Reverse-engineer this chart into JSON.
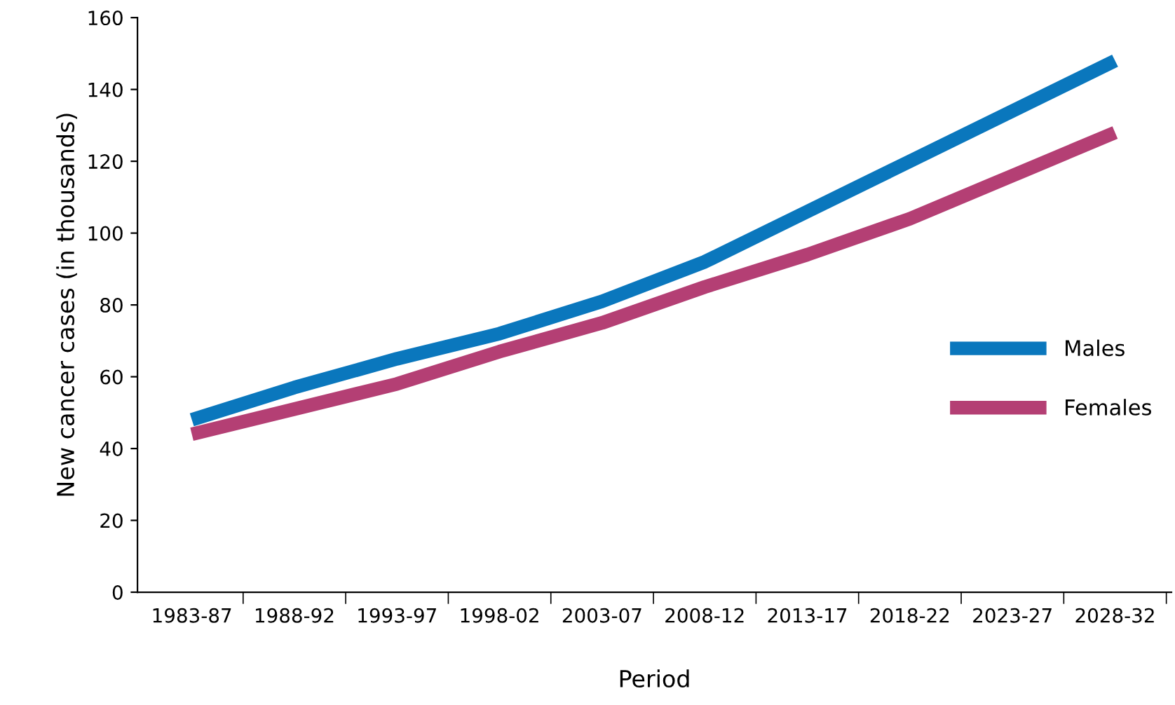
{
  "chart_data": {
    "type": "line",
    "xlabel": "Period",
    "ylabel": "New cancer cases (in thousands)",
    "categories": [
      "1983-87",
      "1988-92",
      "1993-97",
      "1998-02",
      "2003-07",
      "2008-12",
      "2013-17",
      "2018-22",
      "2023-27",
      "2028-32"
    ],
    "series": [
      {
        "name": "Males",
        "color": "#0a77bd",
        "values": [
          48,
          57,
          65,
          72,
          81,
          92,
          106,
          120,
          134,
          148
        ]
      },
      {
        "name": "Females",
        "color": "#b43f74",
        "values": [
          44,
          51,
          58,
          67,
          75,
          85,
          94,
          104,
          116,
          128
        ]
      }
    ],
    "ylim": [
      0,
      160
    ],
    "yticks": [
      0,
      20,
      40,
      60,
      80,
      100,
      120,
      140,
      160
    ],
    "grid": false,
    "legend": "right",
    "marker": "none",
    "line_style": "solid"
  }
}
